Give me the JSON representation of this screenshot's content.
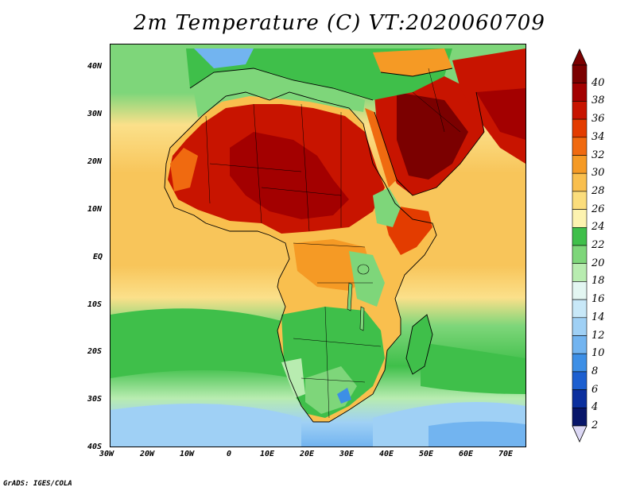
{
  "title": "2m Temperature (C) VT:2020060709",
  "credit": "GrADS: IGES/COLA",
  "lat_labels": [
    "40N",
    "30N",
    "20N",
    "10N",
    "EQ",
    "10S",
    "20S",
    "30S",
    "40S"
  ],
  "lon_labels": [
    "30W",
    "20W",
    "10W",
    "0",
    "10E",
    "20E",
    "30E",
    "40E",
    "50E",
    "60E",
    "70E"
  ],
  "colorbar": {
    "labels": [
      "40",
      "38",
      "36",
      "34",
      "32",
      "30",
      "28",
      "26",
      "24",
      "22",
      "20",
      "18",
      "16",
      "14",
      "12",
      "10",
      "8",
      "6",
      "4",
      "2"
    ],
    "colors": [
      "#7b0000",
      "#a30000",
      "#c81400",
      "#e33c00",
      "#f06a10",
      "#f59a25",
      "#f9bf4e",
      "#fbdd7c",
      "#fdf3b0",
      "#3fbf4a",
      "#7ed67a",
      "#b8ecb0",
      "#e3f6f2",
      "#c8e8f8",
      "#9fd0f5",
      "#72b4f0",
      "#3d8fe6",
      "#1c5fd0",
      "#0b2f9e",
      "#08166a"
    ],
    "under_color": "#dcd8f5"
  },
  "map_colors": {
    "ocean_warm": "#f8c55a",
    "ocean_mid": "#fbe08a",
    "ocean_cool": "#7ed67a",
    "ocean_cold": "#b8ecb0",
    "ocean_colder": "#9fd0f5",
    "land_hot": "#c81400",
    "land_hottest": "#a30000",
    "land_warm": "#f06a10",
    "land_mild": "#f59a25",
    "land_green": "#3fbf4a"
  }
}
